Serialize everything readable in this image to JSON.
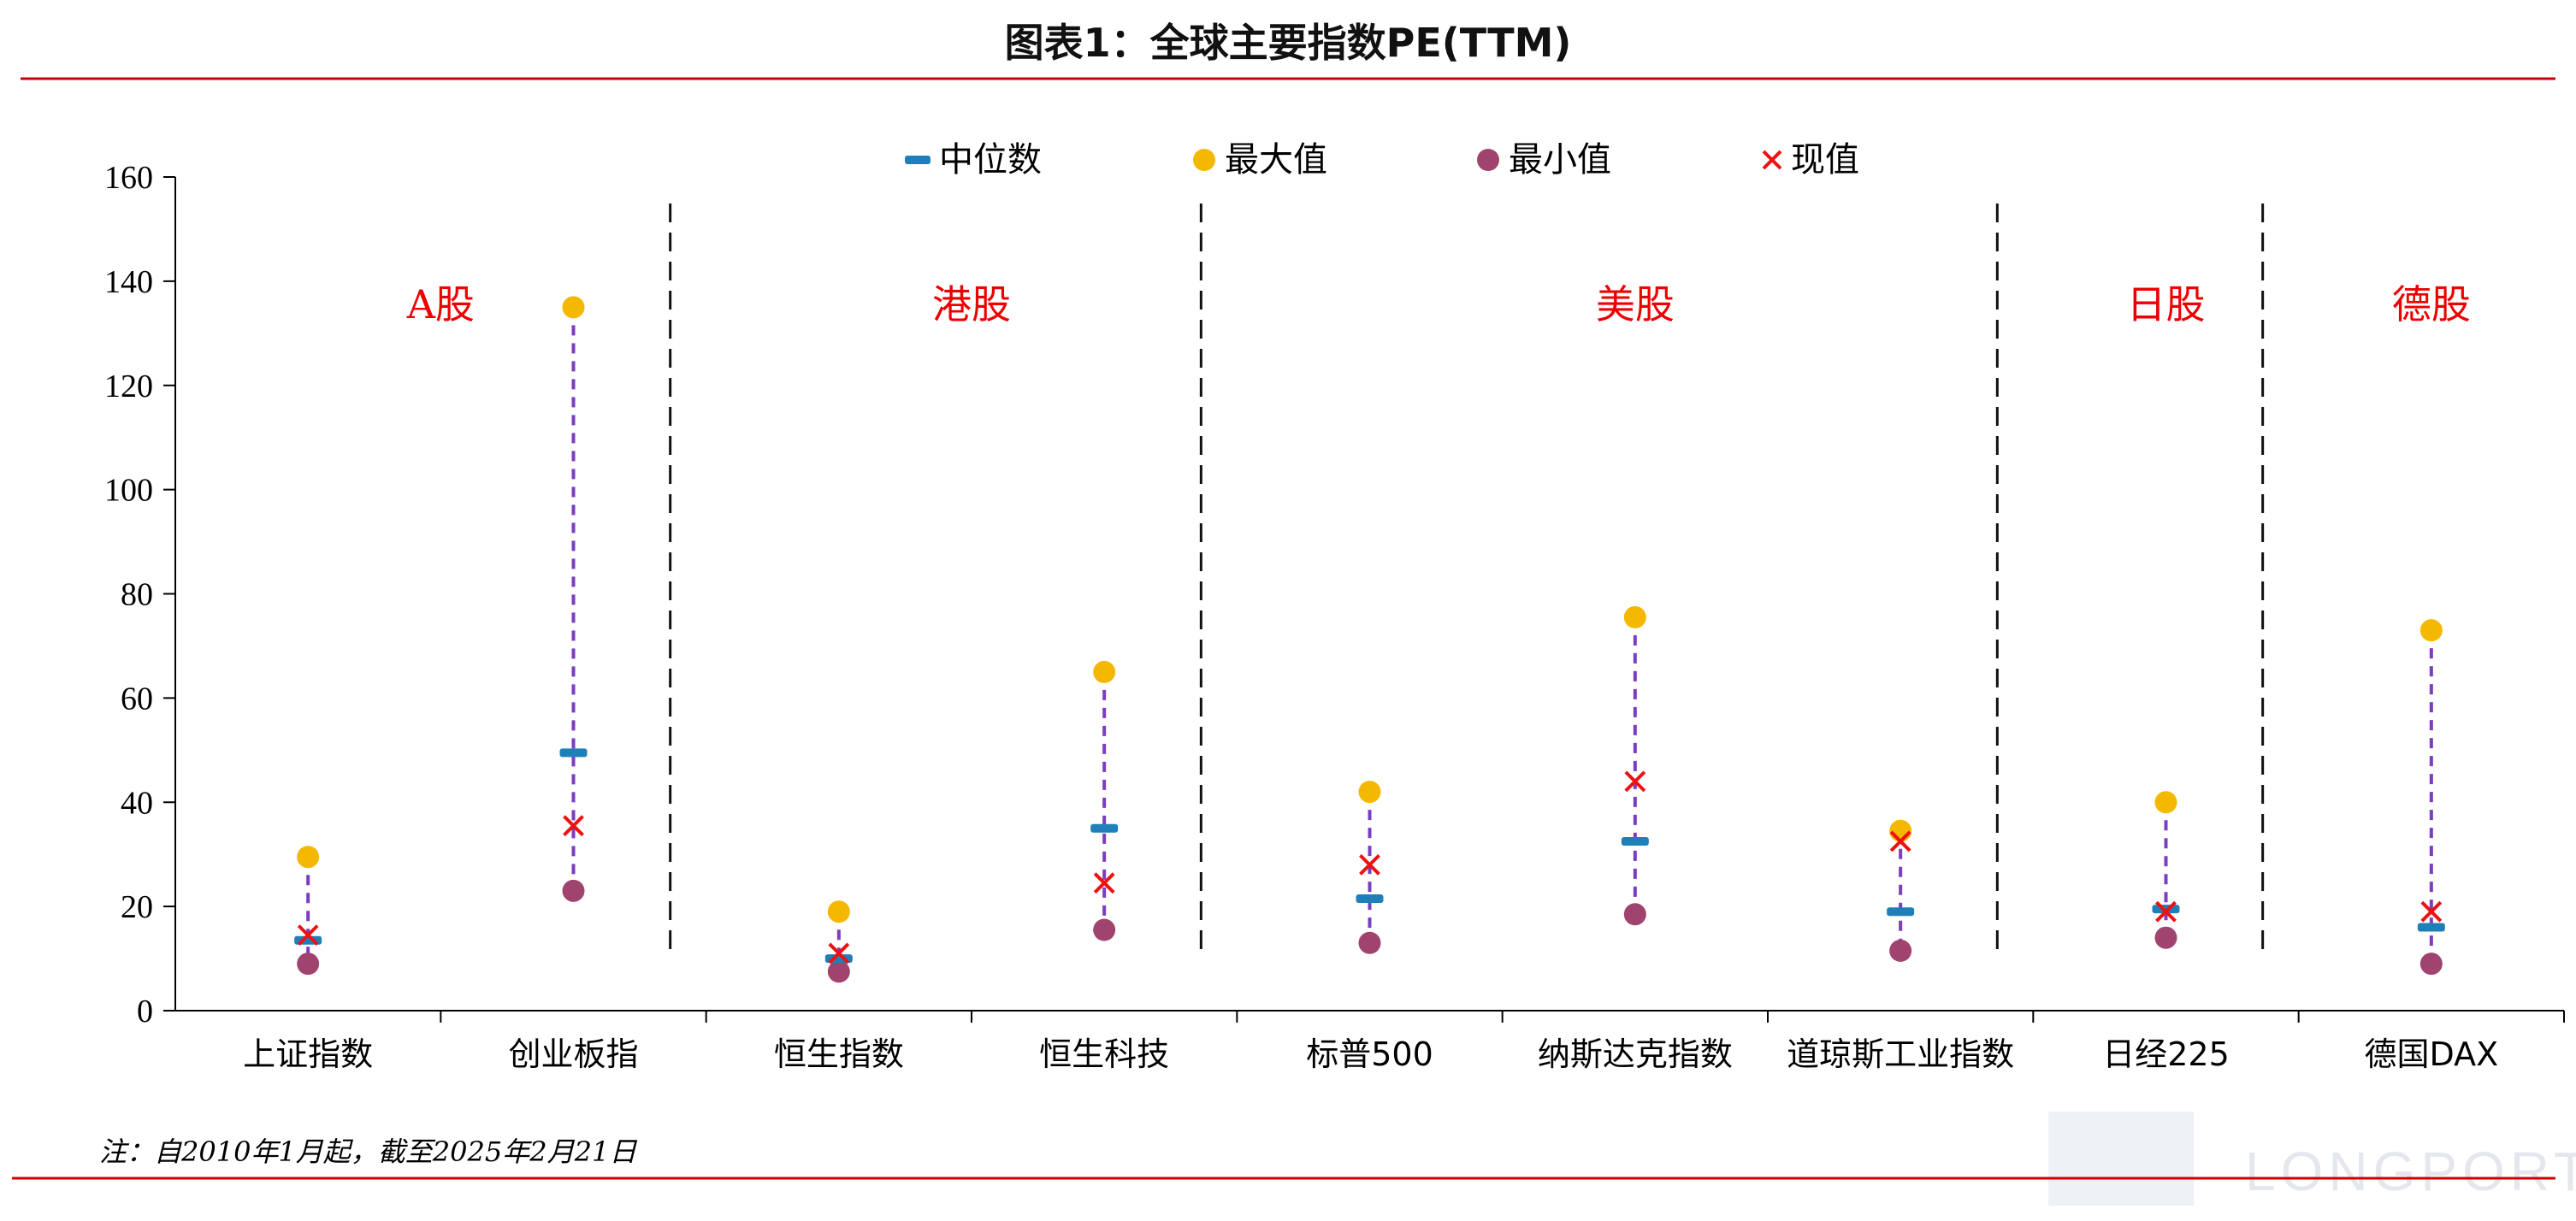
{
  "colors": {
    "median": "#1f7fb8",
    "max": "#f5b800",
    "min": "#a0436f",
    "current": "#ee1111",
    "range_line": "#7b3ec0",
    "rule": "#cc0000",
    "group_label": "#ee0000"
  },
  "chart_data": {
    "type": "scatter",
    "title": "图表1：全球主要指数PE(TTM)",
    "ylim": [
      0,
      160
    ],
    "yticks": [
      0,
      20,
      40,
      60,
      80,
      100,
      120,
      140,
      160
    ],
    "grid": false,
    "legend_position": "top",
    "categories": [
      "上证指数",
      "创业板指",
      "恒生指数",
      "恒生科技",
      "标普500",
      "纳斯达克指数",
      "道琼斯工业指数",
      "日经225",
      "德国DAX"
    ],
    "series": [
      {
        "key": "median",
        "name": "中位数",
        "values": [
          13.5,
          49.5,
          10,
          35,
          21.5,
          32.5,
          19,
          19.5,
          16
        ]
      },
      {
        "key": "max",
        "name": "最大值",
        "values": [
          29.5,
          135,
          19,
          65,
          42,
          75.5,
          34.5,
          40,
          73
        ]
      },
      {
        "key": "min",
        "name": "最小值",
        "values": [
          9,
          23,
          7.5,
          15.5,
          13,
          18.5,
          11.5,
          14,
          9
        ]
      },
      {
        "key": "current",
        "name": "现值",
        "values": [
          14.5,
          35.5,
          11,
          24.5,
          28,
          44,
          32.5,
          19,
          19
        ]
      }
    ],
    "groups": [
      {
        "label": "A股",
        "categories": [
          0,
          1
        ]
      },
      {
        "label": "港股",
        "categories": [
          2,
          3
        ]
      },
      {
        "label": "美股",
        "categories": [
          4,
          5,
          6
        ]
      },
      {
        "label": "日股",
        "categories": [
          7
        ]
      },
      {
        "label": "德股",
        "categories": [
          8
        ]
      }
    ]
  },
  "note": "注：自2010年1月起，截至2025年2月21日",
  "watermark": "LONGPORT"
}
